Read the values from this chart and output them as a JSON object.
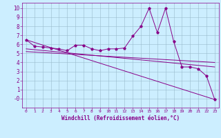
{
  "xlabel": "Windchill (Refroidissement éolien,°C)",
  "x_values": [
    0,
    1,
    2,
    3,
    4,
    5,
    6,
    7,
    8,
    9,
    10,
    11,
    12,
    13,
    14,
    15,
    16,
    17,
    18,
    19,
    20,
    21,
    22,
    23
  ],
  "line_main": [
    6.5,
    5.8,
    5.7,
    5.6,
    5.5,
    5.3,
    5.9,
    5.9,
    5.5,
    5.3,
    5.5,
    5.5,
    5.6,
    6.9,
    8.0,
    10.0,
    7.3,
    10.0,
    6.3,
    3.5,
    3.5,
    3.3,
    2.5,
    -0.1
  ],
  "line_diag1": [
    [
      0,
      6.5
    ],
    [
      23,
      -0.1
    ]
  ],
  "line_diag2": [
    [
      0,
      5.5
    ],
    [
      23,
      3.5
    ]
  ],
  "line_diag3": [
    [
      0,
      5.2
    ],
    [
      23,
      4.0
    ]
  ],
  "color": "#880088",
  "bg_color": "#cceeff",
  "grid_color": "#99bbcc",
  "xlim": [
    -0.5,
    23.5
  ],
  "ylim": [
    -1.0,
    10.6
  ],
  "yticks": [
    0,
    1,
    2,
    3,
    4,
    5,
    6,
    7,
    8,
    9,
    10
  ],
  "ytick_labels": [
    "-0",
    "1",
    "2",
    "3",
    "4",
    "5",
    "6",
    "7",
    "8",
    "9",
    "10"
  ],
  "xticks": [
    0,
    1,
    2,
    3,
    4,
    5,
    6,
    7,
    8,
    9,
    10,
    11,
    12,
    13,
    14,
    15,
    16,
    17,
    18,
    19,
    20,
    21,
    22,
    23
  ]
}
